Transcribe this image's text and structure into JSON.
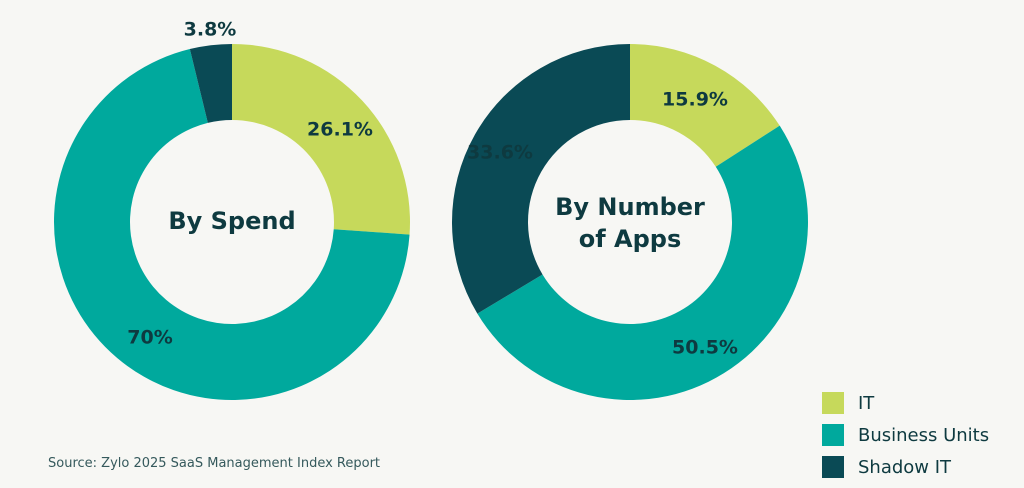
{
  "chart_data": [
    {
      "type": "pie",
      "title": "By Spend",
      "slices": [
        {
          "name": "IT",
          "value": 26.1,
          "label": "26.1%",
          "color": "#c6d95b"
        },
        {
          "name": "Business Units",
          "value": 70,
          "label": "70%",
          "color": "#00a99d"
        },
        {
          "name": "Shadow IT",
          "value": 3.8,
          "label": "3.8%",
          "color": "#0a4a55"
        }
      ]
    },
    {
      "type": "pie",
      "title": "By Number of Apps",
      "title_lines": [
        "By Number",
        "of Apps"
      ],
      "slices": [
        {
          "name": "IT",
          "value": 15.9,
          "label": "15.9%",
          "color": "#c6d95b"
        },
        {
          "name": "Business Units",
          "value": 50.5,
          "label": "50.5%",
          "color": "#00a99d"
        },
        {
          "name": "Shadow IT",
          "value": 33.6,
          "label": "33.6%",
          "color": "#0a4a55"
        }
      ]
    }
  ],
  "legend": [
    {
      "label": "IT",
      "color": "#c6d95b"
    },
    {
      "label": "Business Units",
      "color": "#00a99d"
    },
    {
      "label": "Shadow IT",
      "color": "#0a4a55"
    }
  ],
  "source": "Source: Zylo 2025 SaaS Management Index Report"
}
